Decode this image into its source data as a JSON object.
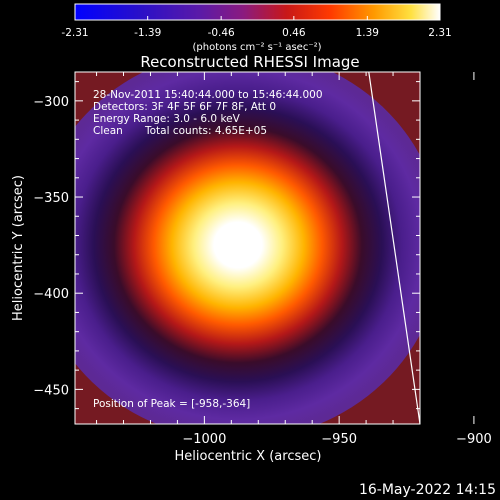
{
  "colorbar": {
    "ticks": [
      "-2.31",
      "-1.39",
      "-0.46",
      "0.46",
      "1.39",
      "2.31"
    ],
    "unit_label": "(photons cm⁻² s⁻¹ asec⁻²)",
    "min": -2.31,
    "max": 2.31
  },
  "plot": {
    "title": "Reconstructed RHESSI Image",
    "info_lines": [
      "28-Nov-2011 15:40:44.000 to 15:46:44.000",
      "Detectors: 3F 4F 5F 6F 7F 8F, Att 0",
      "Energy Range: 3.0 - 6.0 keV"
    ],
    "clean_label": "Clean",
    "total_counts": "Total counts: 4.65E+05",
    "peak_label": "Position of Peak = [-958,-364]"
  },
  "footer": {
    "date": "16-May-2022 14:15"
  },
  "chart_data": {
    "type": "heatmap",
    "title": "Reconstructed RHESSI Image",
    "xlabel": "Heliocentric X (arcsec)",
    "ylabel": "Heliocentric Y (arcsec)",
    "xlim": [
      -1048,
      -920
    ],
    "ylim": [
      -468,
      -285
    ],
    "x_ticks": [
      -1000,
      -950,
      -900
    ],
    "y_ticks": [
      -300,
      -350,
      -400,
      -450
    ],
    "x_tick_labels": [
      "−1000",
      "−950",
      "−900"
    ],
    "y_tick_labels": [
      "−300",
      "−350",
      "−400",
      "−450"
    ],
    "colormap": "RHESSI hot (black-blue-purple-red-orange-yellow-white)",
    "peak": [
      -958,
      -364
    ],
    "limb_line": [
      [
        -939,
        -285
      ],
      [
        -920,
        -468
      ]
    ]
  }
}
